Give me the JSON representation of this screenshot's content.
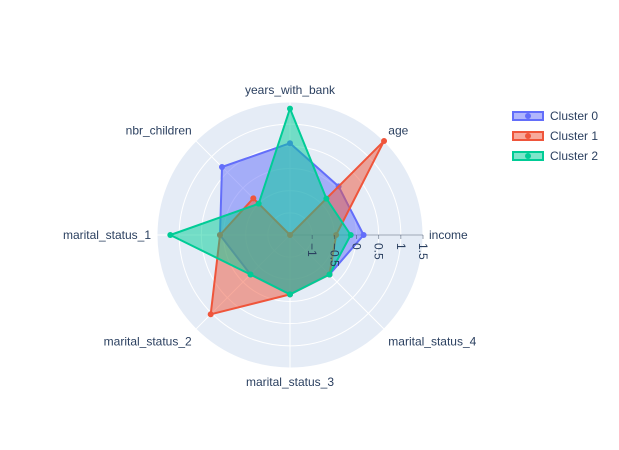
{
  "chart_data": {
    "type": "radar",
    "title": "",
    "categories": [
      "income",
      "age",
      "years_with_bank",
      "nbr_children",
      "marital_status_1",
      "marital_status_2",
      "marital_status_3",
      "marital_status_4"
    ],
    "radial_range": [
      -1.5,
      1.5
    ],
    "radial_ticks": [
      -1,
      -0.5,
      0,
      0.5,
      1,
      1.5
    ],
    "radial_tick_labels": [
      "−1",
      "−0.5",
      "0",
      "0.5",
      "1",
      "1.5"
    ],
    "grid": true,
    "legend_position": "top-right",
    "series": [
      {
        "name": "Cluster 0",
        "color": "#636efa",
        "values": [
          0.16,
          0.05,
          0.57,
          0.67,
          0.08,
          -0.24,
          -0.16,
          -0.24
        ]
      },
      {
        "name": "Cluster 1",
        "color": "#ef553b",
        "values": [
          -0.46,
          1.5,
          -1.5,
          -0.33,
          0.08,
          1.03,
          -0.16,
          -0.24
        ]
      },
      {
        "name": "Cluster 2",
        "color": "#00cc96",
        "values": [
          -0.13,
          -0.34,
          1.35,
          -0.5,
          1.2,
          -0.24,
          -0.16,
          -0.24
        ]
      }
    ]
  }
}
